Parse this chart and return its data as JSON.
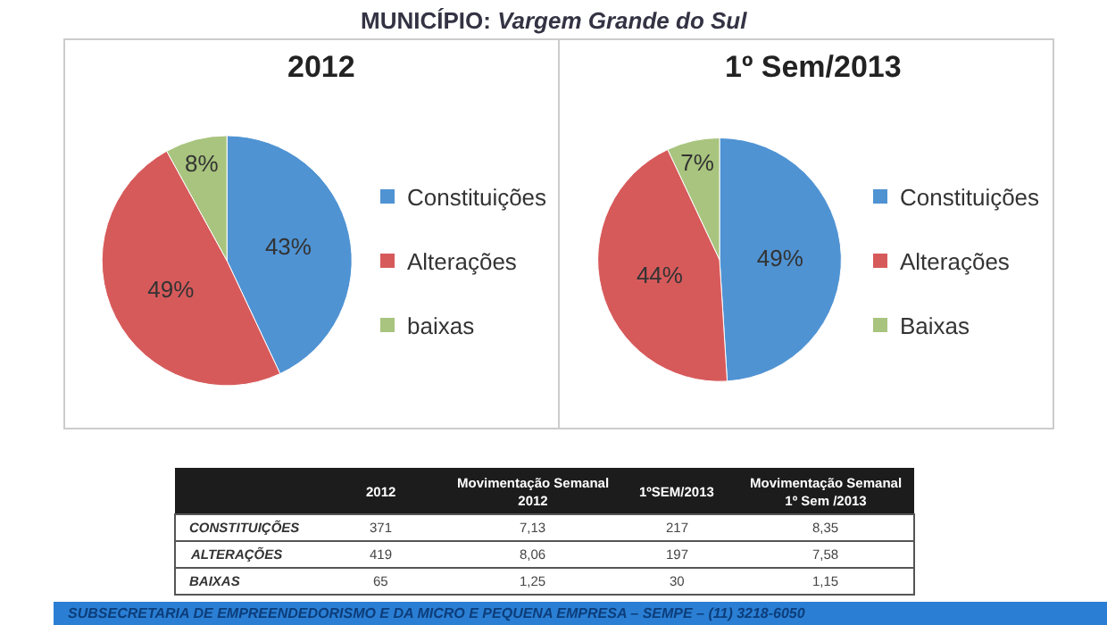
{
  "chart_data": [
    {
      "type": "other",
      "title": "MUNICÍPIO: Vargem Grande do Sul"
    },
    {
      "type": "pie",
      "title": "2012",
      "categories": [
        "Constituições",
        "Alterações",
        "baixas"
      ],
      "values": [
        43,
        49,
        8
      ],
      "value_labels": [
        "43%",
        "49%",
        "8%"
      ],
      "colors": [
        "#4f93d3",
        "#d75a5b",
        "#a8c47e"
      ],
      "legend": "right"
    },
    {
      "type": "pie",
      "title": "1º Sem/2013",
      "categories": [
        "Constituições",
        "Alterações",
        "Baixas"
      ],
      "values": [
        49,
        44,
        7
      ],
      "value_labels": [
        "49%",
        "44%",
        "7%"
      ],
      "colors": [
        "#4f93d3",
        "#d75a5b",
        "#a8c47e"
      ],
      "legend": "right"
    },
    {
      "type": "other",
      "categories": [
        "CONSTITUIÇÕES",
        "ALTERAÇÕES",
        "BAIXAS"
      ],
      "series": [
        {
          "name": "2012",
          "values": [
            371,
            419,
            65
          ]
        },
        {
          "name": "Movimentação Semanal 2012",
          "values": [
            7.13,
            8.06,
            1.25
          ],
          "value_labels": [
            "7,13",
            "8,06",
            "1,25"
          ]
        },
        {
          "name": "1ºSEM/2013",
          "values": [
            217,
            197,
            30
          ]
        },
        {
          "name": "Movimentação Semanal 1º Sem /2013",
          "values": [
            8.35,
            7.58,
            1.15
          ],
          "value_labels": [
            "8,35",
            "7,58",
            "1,15"
          ]
        }
      ],
      "data_labels": true,
      "annotations": [
        "SUBSECRETARIA DE EMPREENDEDORISMO E DA MICRO E PEQUENA EMPRESA – SEMPE – (11) 3218-6050"
      ]
    }
  ]
}
